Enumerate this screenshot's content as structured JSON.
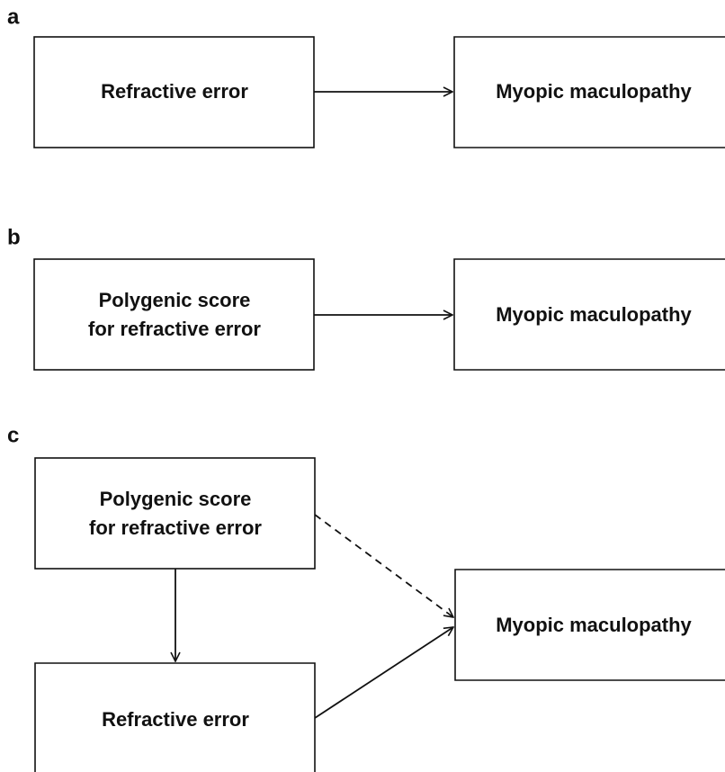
{
  "panels": [
    {
      "label": "a",
      "nodes": [
        {
          "lines": [
            "Refractive error"
          ]
        },
        {
          "lines": [
            "Myopic maculopathy"
          ]
        }
      ]
    },
    {
      "label": "b",
      "nodes": [
        {
          "lines": [
            "Polygenic score",
            "for refractive error"
          ]
        },
        {
          "lines": [
            "Myopic maculopathy"
          ]
        }
      ]
    },
    {
      "label": "c",
      "nodes": [
        {
          "lines": [
            "Polygenic score",
            "for refractive error"
          ]
        },
        {
          "lines": [
            "Myopic maculopathy"
          ]
        },
        {
          "lines": [
            "Refractive error"
          ]
        }
      ]
    }
  ]
}
